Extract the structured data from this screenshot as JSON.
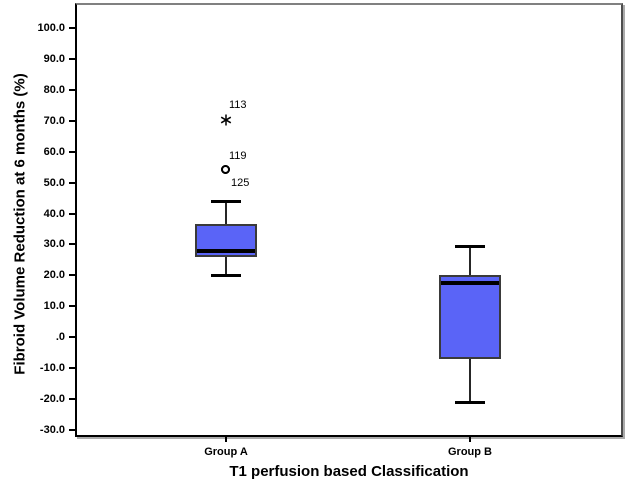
{
  "chart_data": {
    "type": "boxplot",
    "title": "",
    "xlabel": "T1 perfusion based Classification",
    "ylabel": "Fibroid Volume Reduction at 6 months (%)",
    "grid": false,
    "legend": null,
    "y_axis": {
      "min": -30,
      "max": 100,
      "tick_interval": 10,
      "tick_values": [
        100,
        90,
        80,
        70,
        60,
        50,
        40,
        30,
        20,
        10,
        0,
        -10,
        -20,
        -30
      ],
      "tick_labels": [
        "100.0",
        "90.0",
        "80.0",
        "70.0",
        "60.0",
        "50.0",
        "40.0",
        "30.0",
        "20.0",
        "10.0",
        ".0",
        "-10.0",
        "-20.0",
        "-30.0"
      ]
    },
    "categories": [
      "Group A",
      "Group B"
    ],
    "boxes": [
      {
        "category": "Group A",
        "whisker_low": 20,
        "q1": 26,
        "median": 28,
        "q3": 36.5,
        "whisker_high": 44,
        "outliers": [
          {
            "value": 70.5,
            "marker": "star",
            "label": "113",
            "label_pos": "above"
          },
          {
            "value": 54,
            "marker": "circle",
            "label": "119",
            "label_pos": "above"
          },
          {
            "value": 54,
            "marker": "circle",
            "label": "125",
            "label_pos": "below"
          }
        ]
      },
      {
        "category": "Group B",
        "whisker_low": -21,
        "q1": -7,
        "median": 17.5,
        "q3": 20,
        "whisker_high": 29.5,
        "outliers": []
      }
    ],
    "colors": {
      "box_fill": "#5a64f7",
      "box_border": "#3a3a3a",
      "median": "#000000",
      "whisker": "#262626",
      "cap": "#000000",
      "axis_left": "#000000",
      "axis_bottom": "#000000",
      "frame_top": "#808080",
      "frame_right": "#4e4e4e",
      "shadow": "#ababab",
      "text": "#000000"
    }
  }
}
